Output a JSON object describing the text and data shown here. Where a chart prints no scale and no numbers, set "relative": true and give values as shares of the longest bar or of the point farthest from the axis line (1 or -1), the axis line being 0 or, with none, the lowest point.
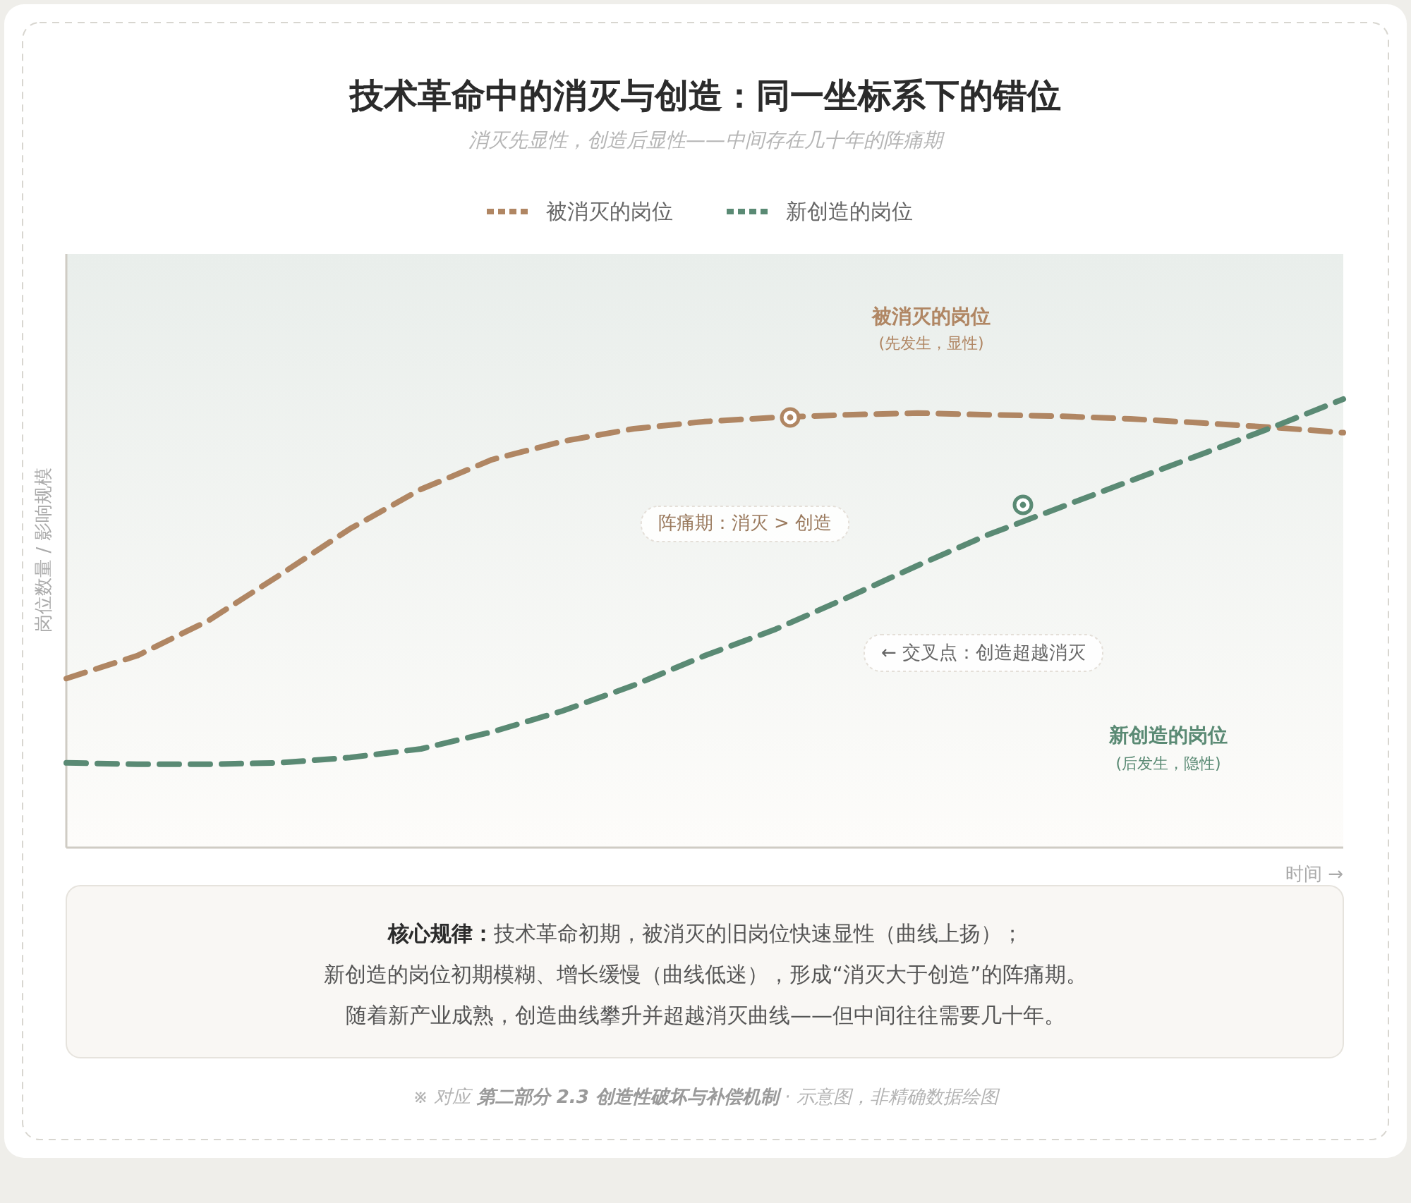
{
  "chart_data": {
    "type": "line",
    "title": "技术革命中的消灭与创造：同一坐标系下的错位",
    "subtitle": "消灭先显性，创造后显性——中间存在几十年的阵痛期",
    "ylabel": "岗位数量 / 影响规模",
    "xlabel": "时间 →",
    "relative": true,
    "legend": "top",
    "grid": false,
    "line_style": "dashed",
    "marker": "none",
    "categories": [
      null,
      null,
      null,
      null,
      null,
      null,
      null,
      null,
      null,
      null,
      null,
      null,
      null,
      null,
      null,
      null,
      null,
      null,
      null
    ],
    "series": [
      {
        "name": "被消灭的岗位",
        "color": "#b08663",
        "values": [
          0.377,
          0.428,
          0.506,
          0.607,
          0.711,
          0.799,
          0.865,
          0.906,
          0.934,
          0.95,
          0.959,
          0.965,
          0.969,
          0.965,
          0.962,
          0.956,
          0.947,
          0.937,
          0.925
        ]
      },
      {
        "name": "新创造的岗位",
        "color": "#5a8a74",
        "values": [
          0.189,
          0.186,
          0.186,
          0.189,
          0.201,
          0.22,
          0.258,
          0.305,
          0.362,
          0.428,
          0.487,
          0.557,
          0.629,
          0.698,
          0.758,
          0.818,
          0.877,
          0.937,
          1.0
        ]
      }
    ],
    "annotations": [
      "被消灭的岗位",
      "(先发生，显性)",
      "阵痛期：消灭 > 创造",
      "← 交叉点：创造超越消灭",
      "新创造的岗位",
      "(后发生，隐性)",
      "核心规律：",
      "技术革命初期，被消灭的旧岗位快速显性（曲线上扬）；",
      "新创造的岗位初期模糊、增长缓慢（曲线低迷），形成“消灭大于创造”的阵痛期。",
      "随着新产业成熟，创造曲线攀升并超越消灭曲线——但中间往往需要几十年。",
      "※ 对应 ",
      "第二部分 2.3 创造性破坏与补偿机制",
      " · 示意图，非精确数据绘图"
    ]
  }
}
